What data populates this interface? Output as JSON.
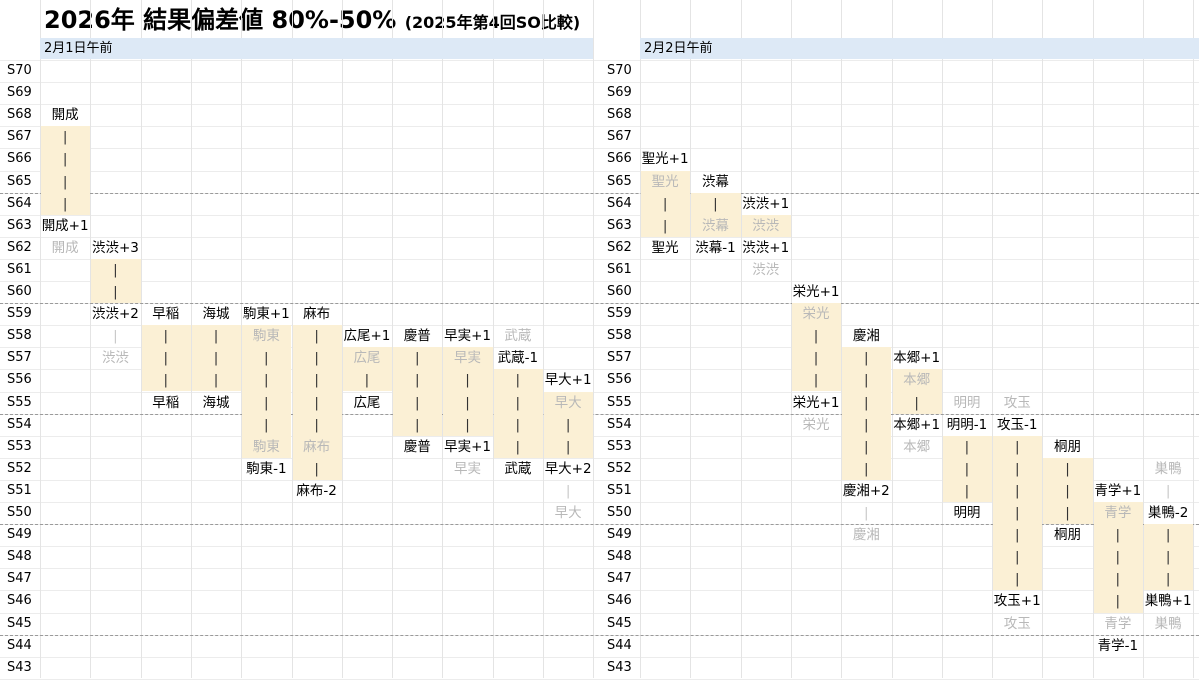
{
  "title": "2026年 結果偏差値 80%-50%",
  "subtitle": "(2025年第4回SO比較)",
  "chart_data": {
    "type": "table",
    "rows": [
      "S70",
      "S69",
      "S68",
      "S67",
      "S66",
      "S65",
      "S64",
      "S63",
      "S62",
      "S61",
      "S60",
      "S59",
      "S58",
      "S57",
      "S56",
      "S55",
      "S54",
      "S53",
      "S52",
      "S51",
      "S50",
      "S49",
      "S48",
      "S47",
      "S46",
      "S45",
      "S44",
      "S43"
    ],
    "panels": [
      {
        "header": "2月1日午前",
        "columns": [
          {
            "label_top": "開成",
            "row_top": "S68",
            "label_bottom": "開成+1",
            "row_bottom": "S63",
            "ghost": "開成",
            "row_ghost": "S62",
            "fill": [
              "S67",
              "S64"
            ]
          },
          {
            "label_top": "渋渋+3",
            "row_top": "S62",
            "label_bottom": "渋渋+2",
            "row_bottom": "S59",
            "ghost": "渋渋",
            "row_ghost": "S57",
            "fill": [
              "S61",
              "S60"
            ],
            "ghost_bar": [
              "S58"
            ]
          },
          {
            "label_top": "早稲",
            "row_top": "S59",
            "label_bottom": "早稲",
            "row_bottom": "S55",
            "fill": [
              "S58",
              "S56"
            ]
          },
          {
            "label_top": "海城",
            "row_top": "S59",
            "label_bottom": "海城",
            "row_bottom": "S55",
            "fill": [
              "S58",
              "S56"
            ]
          },
          {
            "label_top": "駒東+1",
            "row_top": "S59",
            "label_bottom": "駒東-1",
            "row_bottom": "S52",
            "ghost": "駒東",
            "row_ghost": "S58",
            "ghost2": "駒東",
            "row_ghost2": "S53",
            "fill": [
              "S58",
              "S53"
            ]
          },
          {
            "label_top": "麻布",
            "row_top": "S59",
            "label_bottom": "麻布-2",
            "row_bottom": "S51",
            "ghost": "麻布",
            "row_ghost": "S53",
            "fill": [
              "S58",
              "S52"
            ]
          },
          {
            "label_top": "広尾+1",
            "row_top": "S58",
            "label_bottom": "広尾",
            "row_bottom": "S55",
            "ghost": "広尾",
            "row_ghost": "S57",
            "fill": [
              "S57",
              "S56"
            ]
          },
          {
            "label_top": "慶普",
            "row_top": "S58",
            "label_bottom": "慶普",
            "row_bottom": "S53",
            "fill": [
              "S57",
              "S54"
            ]
          },
          {
            "label_top": "早実+1",
            "row_top": "S58",
            "label_bottom": "早実+1",
            "row_bottom": "S53",
            "ghost": "早実",
            "row_ghost": "S57",
            "ghost2": "早実",
            "row_ghost2": "S52",
            "fill": [
              "S57",
              "S54"
            ]
          },
          {
            "label_top": "武蔵-1",
            "row_top": "S57",
            "label_bottom": "武蔵",
            "row_bottom": "S52",
            "ghost": "武蔵",
            "row_ghost": "S58",
            "fill": [
              "S56",
              "S53"
            ]
          },
          {
            "label_top": "早大+1",
            "row_top": "S56",
            "label_bottom": "早大+2",
            "row_bottom": "S52",
            "ghost": "早大",
            "row_ghost": "S55",
            "ghost2": "早大",
            "row_ghost2": "S50",
            "fill": [
              "S55",
              "S53"
            ],
            "ghost_bar": [
              "S51"
            ]
          }
        ]
      },
      {
        "header": "2月2日午前",
        "columns": [
          {
            "label_top": "聖光+1",
            "row_top": "S66",
            "label_bottom": "聖光",
            "row_bottom": "S62",
            "ghost": "聖光",
            "row_ghost": "S65",
            "fill": [
              "S65",
              "S63"
            ]
          },
          {
            "label_top": "渋幕",
            "row_top": "S65",
            "label_bottom": "渋幕-1",
            "row_bottom": "S62",
            "ghost": "渋幕",
            "row_ghost": "S63",
            "fill": [
              "S64",
              "S63"
            ]
          },
          {
            "label_top": "渋渋+1",
            "row_top": "S64",
            "label_bottom": "渋渋+1",
            "row_bottom": "S62",
            "ghost": "渋渋",
            "row_ghost": "S63",
            "ghost2": "渋渋",
            "row_ghost2": "S61",
            "fill": [
              "S63",
              "S63"
            ]
          },
          {
            "label_top": "栄光+1",
            "row_top": "S60",
            "label_bottom": "栄光+1",
            "row_bottom": "S55",
            "ghost": "栄光",
            "row_ghost": "S59",
            "ghost2": "栄光",
            "row_ghost2": "S54",
            "fill": [
              "S59",
              "S56"
            ]
          },
          {
            "label_top": "慶湘",
            "row_top": "S58",
            "label_bottom": "慶湘+2",
            "row_bottom": "S51",
            "ghost": "慶湘",
            "row_ghost": "S49",
            "fill": [
              "S57",
              "S52"
            ],
            "ghost_bar": [
              "S50"
            ]
          },
          {
            "label_top": "本郷+1",
            "row_top": "S57",
            "label_bottom": "本郷+1",
            "row_bottom": "S54",
            "ghost": "本郷",
            "row_ghost": "S56",
            "ghost2": "本郷",
            "row_ghost2": "S53",
            "fill": [
              "S56",
              "S55"
            ]
          },
          {
            "label_top": "明明-1",
            "row_top": "S54",
            "label_bottom": "明明",
            "row_bottom": "S50",
            "ghost": "明明",
            "row_ghost": "S55",
            "fill": [
              "S53",
              "S51"
            ]
          },
          {
            "label_top": "攻玉-1",
            "row_top": "S54",
            "label_bottom": "攻玉+1",
            "row_bottom": "S46",
            "ghost": "攻玉",
            "row_ghost": "S55",
            "ghost2": "攻玉",
            "row_ghost2": "S45",
            "fill": [
              "S53",
              "S47"
            ]
          },
          {
            "label_top": "桐朋",
            "row_top": "S53",
            "label_bottom": "桐朋",
            "row_bottom": "S49",
            "fill": [
              "S52",
              "S50"
            ]
          },
          {
            "label_top": "青学+1",
            "row_top": "S51",
            "label_bottom": "青学-1",
            "row_bottom": "S44",
            "ghost": "青学",
            "row_ghost": "S50",
            "ghost2": "青学",
            "row_ghost2": "S45",
            "fill": [
              "S50",
              "S46"
            ]
          },
          {
            "label_top": "巣鴨-2",
            "row_top": "S50",
            "label_bottom": "巣鴨+1",
            "row_bottom": "S46",
            "ghost": "巣鴨",
            "row_ghost": "S52",
            "ghost2": "巣鴨",
            "row_ghost2": "S45",
            "fill": [
              "S49",
              "S47"
            ],
            "ghost_bar": [
              "S51"
            ]
          }
        ]
      }
    ],
    "bar_glyph": "|"
  }
}
